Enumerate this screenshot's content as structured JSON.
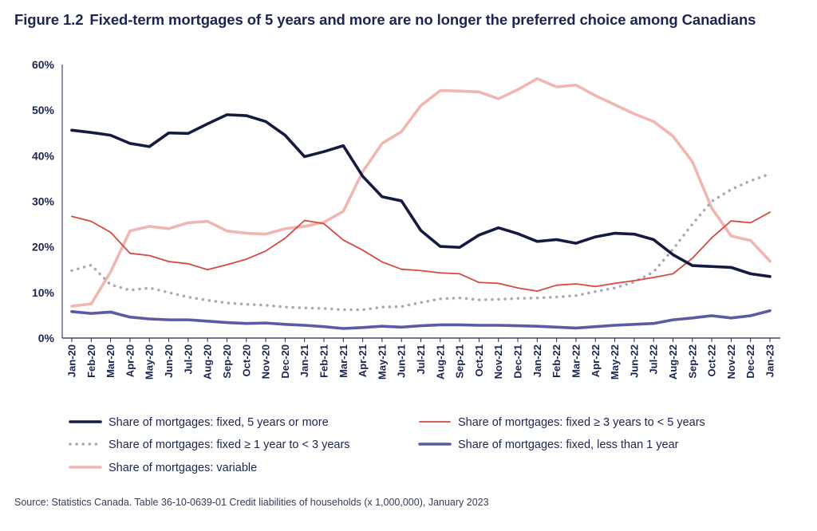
{
  "title": {
    "figure": "Figure 1.2",
    "text": "Fixed-term mortgages of 5 years and more are no longer the preferred choice among Canadians"
  },
  "source": "Source: Statistics Canada. Table 36-10-0639-01 Credit liabilities of households (x 1,000,000), January 2023",
  "chart_data": {
    "type": "line",
    "ylim": [
      0,
      60
    ],
    "yticks": [
      "0%",
      "10%",
      "20%",
      "30%",
      "40%",
      "50%",
      "60%"
    ],
    "y_tick_values": [
      0,
      10,
      20,
      30,
      40,
      50,
      60
    ],
    "grid": false,
    "legend_placement": "bottom",
    "categories": [
      "Jan-20",
      "Feb-20",
      "Mar-20",
      "Apr-20",
      "May-20",
      "Jun-20",
      "Jul-20",
      "Aug-20",
      "Sep-20",
      "Oct-20",
      "Nov-20",
      "Dec-20",
      "Jan-21",
      "Feb-21",
      "Mar-21",
      "Apr-21",
      "May-21",
      "Jun-21",
      "Jul-21",
      "Aug-21",
      "Sep-21",
      "Oct-21",
      "Nov-21",
      "Dec-21",
      "Jan-22",
      "Feb-22",
      "Mar-22",
      "Apr-22",
      "May-22",
      "Jun-22",
      "Jul-22",
      "Aug-22",
      "Sep-22",
      "Oct-22",
      "Nov-22",
      "Dec-22",
      "Jan-23"
    ],
    "series": [
      {
        "name": "Share of mortgages: fixed, 5 years or more",
        "color": "#141a40",
        "style": "solid-thick",
        "values": [
          45.6,
          45.1,
          44.5,
          42.7,
          42.0,
          45.0,
          44.9,
          47.0,
          49.0,
          48.8,
          47.5,
          44.5,
          39.8,
          40.9,
          42.2,
          35.5,
          31.0,
          30.1,
          23.6,
          20.1,
          19.9,
          22.6,
          24.2,
          22.9,
          21.2,
          21.6,
          20.8,
          22.2,
          23.0,
          22.8,
          21.6,
          18.3,
          15.9,
          15.7,
          15.5,
          14.1,
          13.5
        ]
      },
      {
        "name": "Share of mortgages: fixed ≥ 3 years to < 5 years",
        "color": "#d44a3e",
        "style": "solid-thin",
        "values": [
          26.7,
          25.6,
          23.2,
          18.6,
          18.1,
          16.8,
          16.3,
          15.0,
          16.1,
          17.3,
          19.1,
          21.9,
          25.8,
          25.1,
          21.5,
          19.3,
          16.7,
          15.1,
          14.8,
          14.3,
          14.1,
          12.2,
          12.0,
          11.0,
          10.3,
          11.6,
          11.9,
          11.3,
          12.0,
          12.6,
          13.3,
          14.1,
          17.5,
          22.0,
          25.7,
          25.3,
          27.6
        ]
      },
      {
        "name": "Share of mortgages: fixed ≥ 1 year to < 3 years",
        "color": "#a8a8b8",
        "style": "dotted",
        "values": [
          14.8,
          16.0,
          11.7,
          10.5,
          11.0,
          10.0,
          9.0,
          8.3,
          7.7,
          7.4,
          7.2,
          6.8,
          6.6,
          6.5,
          6.2,
          6.2,
          6.8,
          6.9,
          7.8,
          8.6,
          8.8,
          8.4,
          8.5,
          8.7,
          8.8,
          9.0,
          9.3,
          10.2,
          11.0,
          12.3,
          14.5,
          19.5,
          25.0,
          30.0,
          32.6,
          34.5,
          36.0
        ]
      },
      {
        "name": "Share of mortgages: fixed, less than 1 year",
        "color": "#5c5aa3",
        "style": "solid-thick",
        "values": [
          5.8,
          5.4,
          5.7,
          4.6,
          4.2,
          4.0,
          4.0,
          3.7,
          3.4,
          3.2,
          3.3,
          3.0,
          2.8,
          2.5,
          2.1,
          2.3,
          2.6,
          2.4,
          2.7,
          2.9,
          2.9,
          2.8,
          2.8,
          2.7,
          2.6,
          2.4,
          2.2,
          2.5,
          2.8,
          3.0,
          3.2,
          4.0,
          4.4,
          4.9,
          4.4,
          4.9,
          6.0
        ]
      },
      {
        "name": "Share of mortgages: variable",
        "color": "#f0b6b2",
        "style": "solid-thick",
        "values": [
          7.0,
          7.5,
          14.5,
          23.5,
          24.5,
          24.0,
          25.3,
          25.6,
          23.5,
          23.0,
          22.8,
          24.0,
          24.5,
          25.4,
          27.8,
          36.5,
          42.7,
          45.3,
          51.0,
          54.3,
          54.2,
          54.0,
          52.5,
          54.5,
          56.9,
          55.1,
          55.5,
          53.2,
          51.2,
          49.2,
          47.5,
          44.3,
          38.7,
          28.5,
          22.4,
          21.4,
          16.9
        ]
      }
    ]
  },
  "legend": [
    {
      "label": "Share of mortgages: fixed, 5 years or more",
      "icon": "legend-line-solid-icon"
    },
    {
      "label": "Share of mortgages: fixed ≥ 3 years to < 5 years",
      "icon": "legend-line-solid-icon"
    },
    {
      "label": "Share of mortgages: fixed ≥ 1 year to < 3 years",
      "icon": "legend-line-dotted-icon"
    },
    {
      "label": "Share of mortgages: fixed, less than 1 year",
      "icon": "legend-line-solid-icon"
    },
    {
      "label": "Share of mortgages: variable",
      "icon": "legend-line-solid-icon"
    }
  ]
}
